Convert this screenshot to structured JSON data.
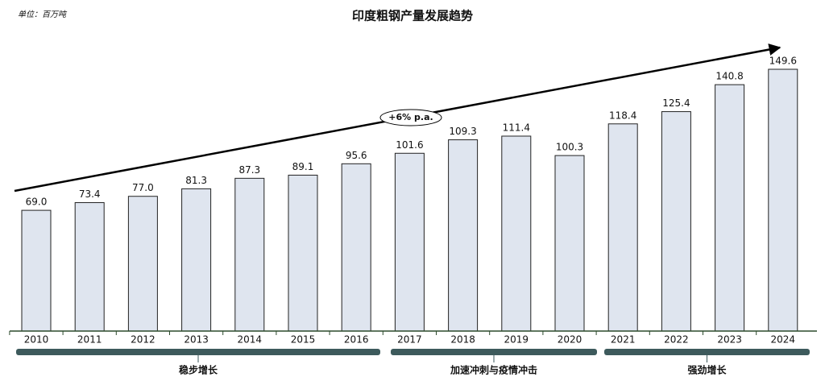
{
  "chart_data": {
    "type": "bar",
    "title": "印度粗钢产量发展趋势",
    "unit_note": "单位：百万吨",
    "annotation": "+6% p.a.",
    "categories": [
      "2010",
      "2011",
      "2012",
      "2013",
      "2014",
      "2015",
      "2016",
      "2017",
      "2018",
      "2019",
      "2020",
      "2021",
      "2022",
      "2023",
      "2024"
    ],
    "values": [
      69.0,
      73.4,
      77.0,
      81.3,
      87.3,
      89.1,
      95.6,
      101.6,
      109.3,
      111.4,
      100.3,
      118.4,
      125.4,
      140.8,
      149.6
    ],
    "value_labels": [
      "69.0",
      "73.4",
      "77.0",
      "81.3",
      "87.3",
      "89.1",
      "95.6",
      "101.6",
      "109.3",
      "111.4",
      "100.3",
      "118.4",
      "125.4",
      "140.8",
      "149.6"
    ],
    "color": "#dfe5ef",
    "phases": [
      "稳步增长",
      "加速冲刺与疫情冲击",
      "强劲增长"
    ]
  }
}
